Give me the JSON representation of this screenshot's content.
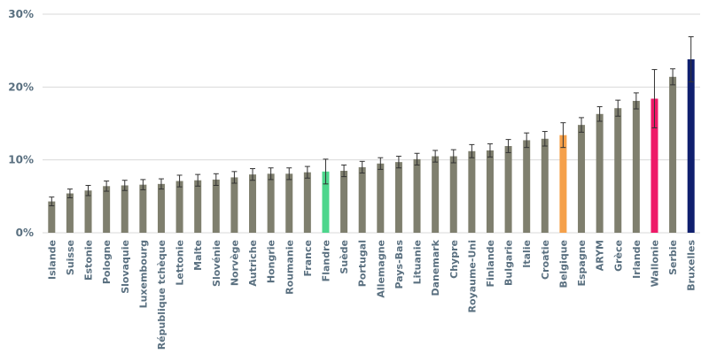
{
  "chart_data": {
    "type": "bar",
    "title": "",
    "xlabel": "",
    "ylabel": "",
    "ylim": [
      0,
      30
    ],
    "yticks": [
      "0%",
      "10%",
      "20%",
      "30%"
    ],
    "grid": true,
    "legend": "none",
    "categories": [
      "Islande",
      "Suisse",
      "Estonie",
      "Pologne",
      "Slovaquie",
      "Luxembourg",
      "République tchèque",
      "Lettonie",
      "Malte",
      "Slovénie",
      "Norvège",
      "Autriche",
      "Hongrie",
      "Roumanie",
      "France",
      "Flandre",
      "Suède",
      "Portugal",
      "Allemagne",
      "Pays-Bas",
      "Lituanie",
      "Danemark",
      "Chypre",
      "Royaume-Uni",
      "Finlande",
      "Bulgarie",
      "Italie",
      "Croatie",
      "Belgique",
      "Espagne",
      "ARYM",
      "Grèce",
      "Irlande",
      "Wallonie",
      "Serbie",
      "Bruxelles"
    ],
    "values": [
      4.3,
      5.4,
      5.8,
      6.4,
      6.5,
      6.6,
      6.7,
      7.1,
      7.2,
      7.3,
      7.6,
      8.0,
      8.1,
      8.1,
      8.3,
      8.4,
      8.5,
      9.0,
      9.5,
      9.7,
      10.1,
      10.5,
      10.5,
      11.2,
      11.3,
      11.9,
      12.7,
      12.9,
      13.4,
      14.8,
      16.3,
      17.1,
      18.1,
      18.4,
      21.4,
      23.8
    ],
    "errors": [
      0.6,
      0.6,
      0.7,
      0.7,
      0.7,
      0.7,
      0.7,
      0.8,
      0.8,
      0.8,
      0.8,
      0.8,
      0.8,
      0.8,
      0.8,
      1.7,
      0.8,
      0.8,
      0.8,
      0.8,
      0.8,
      0.8,
      0.9,
      0.9,
      0.9,
      0.9,
      1.0,
      1.0,
      1.7,
      1.0,
      1.0,
      1.1,
      1.1,
      4.0,
      1.1,
      3.1
    ],
    "colors": [
      "#7f7f6e",
      "#7f7f6e",
      "#7f7f6e",
      "#7f7f6e",
      "#7f7f6e",
      "#7f7f6e",
      "#7f7f6e",
      "#7f7f6e",
      "#7f7f6e",
      "#7f7f6e",
      "#7f7f6e",
      "#7f7f6e",
      "#7f7f6e",
      "#7f7f6e",
      "#7f7f6e",
      "#4dd68c",
      "#7f7f6e",
      "#7f7f6e",
      "#7f7f6e",
      "#7f7f6e",
      "#7f7f6e",
      "#7f7f6e",
      "#7f7f6e",
      "#7f7f6e",
      "#7f7f6e",
      "#7f7f6e",
      "#7f7f6e",
      "#7f7f6e",
      "#f5a04a",
      "#7f7f6e",
      "#7f7f6e",
      "#7f7f6e",
      "#7f7f6e",
      "#ee1a68",
      "#7f7f6e",
      "#0f1f6e"
    ],
    "colors_meta": {
      "default_bar": "#7f7f6e",
      "gridline": "#d9d9d9",
      "axis_text": "#5a7080",
      "error_bar": "#333333"
    }
  }
}
